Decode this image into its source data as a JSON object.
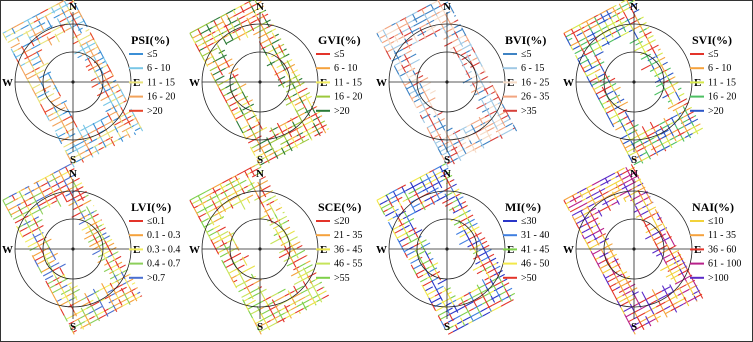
{
  "compass": {
    "north": "N",
    "south": "S",
    "east": "E",
    "west": "W"
  },
  "panels": [
    {
      "title": "PSI(%)",
      "colors": [
        "#3b8fd6",
        "#79c6e6",
        "#e8e27a",
        "#f2a25a",
        "#e8442a"
      ],
      "legend": [
        {
          "label": "≤5",
          "color": "#3b8fd6"
        },
        {
          "label": "6 - 10",
          "color": "#79c6e6"
        },
        {
          "label": "11 - 15",
          "color": "#e8e27a"
        },
        {
          "label": "16 - 20",
          "color": "#f2a25a"
        },
        {
          "label": ">20",
          "color": "#e8442a"
        }
      ]
    },
    {
      "title": "GVI(%)",
      "colors": [
        "#e3342a",
        "#f5a23c",
        "#f2ec5e",
        "#9cc83c",
        "#2a7a36"
      ],
      "legend": [
        {
          "label": "≤5",
          "color": "#e3342a"
        },
        {
          "label": "6 - 10",
          "color": "#f5a23c"
        },
        {
          "label": "11 - 15",
          "color": "#f2ec5e"
        },
        {
          "label": "16 - 20",
          "color": "#9cc83c"
        },
        {
          "label": ">20",
          "color": "#2a7a36"
        }
      ]
    },
    {
      "title": "BVI(%)",
      "colors": [
        "#3f83c4",
        "#9fc8e4",
        "#f6dcc8",
        "#f2a580",
        "#d6403a"
      ],
      "legend": [
        {
          "label": "≤5",
          "color": "#3f83c4"
        },
        {
          "label": "6 - 15",
          "color": "#9fc8e4"
        },
        {
          "label": "16 - 25",
          "color": "#f6dcc8"
        },
        {
          "label": "26 - 35",
          "color": "#f2a580"
        },
        {
          "label": ">35",
          "color": "#d6403a"
        }
      ]
    },
    {
      "title": "SVI(%)",
      "colors": [
        "#e3342a",
        "#f5a23c",
        "#d6e84a",
        "#4cbf62",
        "#2b55c6"
      ],
      "legend": [
        {
          "label": "≤5",
          "color": "#e3342a"
        },
        {
          "label": "6 - 10",
          "color": "#f5a23c"
        },
        {
          "label": "11 - 15",
          "color": "#d6e84a"
        },
        {
          "label": "16 - 20",
          "color": "#4cbf62"
        },
        {
          "label": ">20",
          "color": "#2b55c6"
        }
      ]
    },
    {
      "title": "LVI(%)",
      "colors": [
        "#e3342a",
        "#f5a23c",
        "#f2ec5e",
        "#8ccf5a",
        "#4a6fd0"
      ],
      "legend": [
        {
          "label": "≤0.1",
          "color": "#e3342a"
        },
        {
          "label": "0.1 - 0.3",
          "color": "#f5a23c"
        },
        {
          "label": "0.3 - 0.4",
          "color": "#f2ec5e"
        },
        {
          "label": "0.4 - 0.7",
          "color": "#8ccf5a"
        },
        {
          "label": ">0.7",
          "color": "#4a6fd0"
        }
      ]
    },
    {
      "title": "SCE(%)",
      "colors": [
        "#e3342a",
        "#f5a23c",
        "#e8e24a",
        "#c6e45a",
        "#7ed04a"
      ],
      "legend": [
        {
          "label": "≤20",
          "color": "#e3342a"
        },
        {
          "label": "21 - 35",
          "color": "#f5a23c"
        },
        {
          "label": "36 - 45",
          "color": "#e8e24a"
        },
        {
          "label": "46 - 55",
          "color": "#c6e45a"
        },
        {
          "label": ">55",
          "color": "#7ed04a"
        }
      ]
    },
    {
      "title": "MI(%)",
      "colors": [
        "#2a36c8",
        "#3f7ee0",
        "#7fd04a",
        "#f2e84a",
        "#e3342a"
      ],
      "legend": [
        {
          "label": "≤30",
          "color": "#2a36c8"
        },
        {
          "label": "31 - 40",
          "color": "#3f7ee0"
        },
        {
          "label": "41 - 45",
          "color": "#7fd04a"
        },
        {
          "label": "46 - 50",
          "color": "#f2e84a"
        },
        {
          "label": ">50",
          "color": "#e3342a"
        }
      ]
    },
    {
      "title": "NAI(%)",
      "colors": [
        "#f2d23a",
        "#f5a23c",
        "#e3342a",
        "#b8208a",
        "#5a2ac8"
      ],
      "legend": [
        {
          "label": "≤10",
          "color": "#f2d23a"
        },
        {
          "label": "11 - 35",
          "color": "#f5a23c"
        },
        {
          "label": "36 - 60",
          "color": "#e3342a"
        },
        {
          "label": "61 - 100",
          "color": "#b8208a"
        },
        {
          "label": ">100",
          "color": "#5a2ac8"
        }
      ]
    }
  ]
}
